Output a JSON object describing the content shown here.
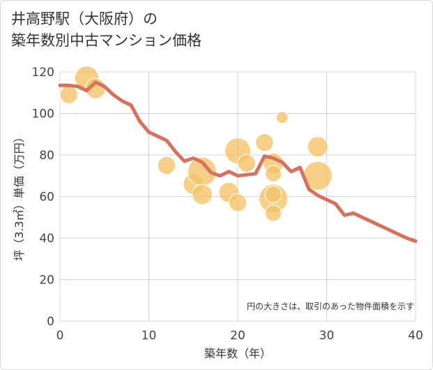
{
  "title_line1": "井高野駅（大阪府）の",
  "title_line2": "築年数別中古マンション価格",
  "note": "円の大きさは、取引のあった物件面積を示す",
  "colors": {
    "bubble": "#f5c164",
    "line": "#d9705c",
    "grid": "#c8d3de",
    "frame": "#d9d9d9"
  },
  "chart_data": {
    "type": "scatter",
    "xlabel": "築年数（年）",
    "ylabel": "坪（3.3㎡）単価（万円）",
    "xlim": [
      0,
      40
    ],
    "ylim": [
      0,
      120
    ],
    "x_ticks": [
      0,
      10,
      20,
      30,
      40
    ],
    "y_ticks": [
      0,
      20,
      40,
      60,
      80,
      100,
      120
    ],
    "grid": true,
    "bubbles": [
      {
        "x": 1,
        "y": 109,
        "size": 2
      },
      {
        "x": 3,
        "y": 117,
        "size": 5
      },
      {
        "x": 4,
        "y": 112,
        "size": 3
      },
      {
        "x": 12,
        "y": 75,
        "size": 2
      },
      {
        "x": 15,
        "y": 66,
        "size": 3
      },
      {
        "x": 16,
        "y": 72,
        "size": 8
      },
      {
        "x": 16,
        "y": 61,
        "size": 3
      },
      {
        "x": 19,
        "y": 62,
        "size": 3
      },
      {
        "x": 20,
        "y": 82,
        "size": 6
      },
      {
        "x": 20,
        "y": 57,
        "size": 2
      },
      {
        "x": 21,
        "y": 76,
        "size": 2
      },
      {
        "x": 23,
        "y": 86,
        "size": 2
      },
      {
        "x": 24,
        "y": 76,
        "size": 3
      },
      {
        "x": 24,
        "y": 71,
        "size": 1.5
      },
      {
        "x": 24,
        "y": 59,
        "size": 8
      },
      {
        "x": 24,
        "y": 61,
        "size": 1.5
      },
      {
        "x": 24,
        "y": 52,
        "size": 1.5
      },
      {
        "x": 25,
        "y": 98,
        "size": 0.4
      },
      {
        "x": 29,
        "y": 84,
        "size": 3
      },
      {
        "x": 29,
        "y": 70,
        "size": 8
      }
    ],
    "series": [
      {
        "type": "line",
        "x": [
          0,
          1,
          2,
          3,
          4,
          5,
          6,
          7,
          8,
          9,
          10,
          11,
          12,
          13,
          14,
          15,
          16,
          17,
          18,
          19,
          20,
          21,
          22,
          23,
          24,
          25,
          26,
          27,
          28,
          29,
          30,
          31,
          32,
          33,
          34,
          35,
          36,
          37,
          38,
          39,
          40
        ],
        "y": [
          113.5,
          113.5,
          113,
          111,
          115,
          113,
          109,
          106,
          104,
          96,
          91,
          89,
          87,
          81.5,
          77,
          78.5,
          76.5,
          71.5,
          70,
          72,
          70,
          70.5,
          71,
          79.5,
          78.5,
          76.5,
          72,
          74,
          63.5,
          60.5,
          58.5,
          56.5,
          51,
          52,
          50,
          48,
          46,
          44,
          42,
          40,
          38.5
        ]
      }
    ]
  }
}
